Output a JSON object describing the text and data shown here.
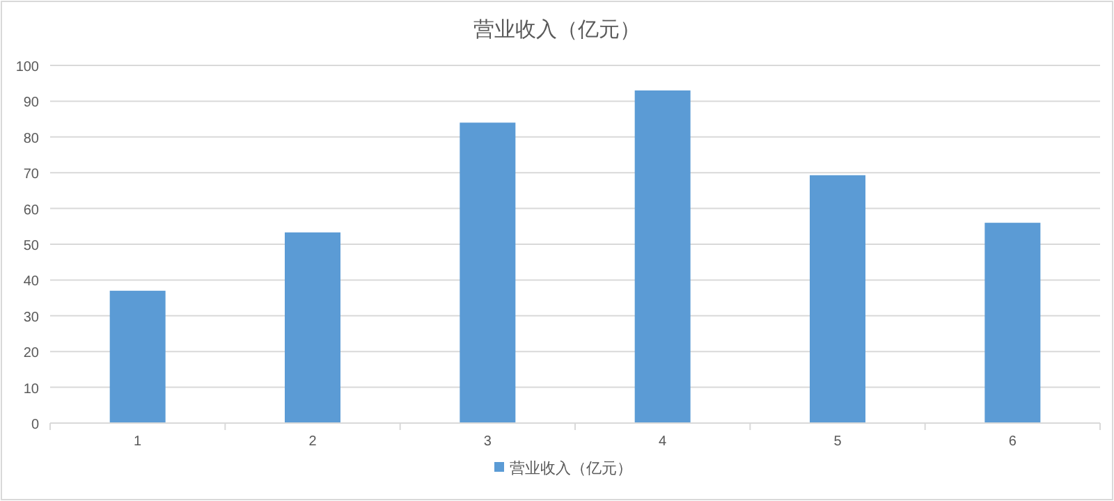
{
  "chart_data": {
    "type": "bar",
    "title": "营业收入（亿元）",
    "categories": [
      "1",
      "2",
      "3",
      "4",
      "5",
      "6"
    ],
    "series": [
      {
        "name": "营业收入（亿元）",
        "color": "#5b9bd5",
        "values": [
          37,
          53.3,
          84,
          93,
          69.3,
          56
        ]
      }
    ],
    "ylim": [
      0,
      100
    ],
    "yticks": [
      0,
      10,
      20,
      30,
      40,
      50,
      60,
      70,
      80,
      90,
      100
    ],
    "grid": "y",
    "legend": "bottom"
  }
}
